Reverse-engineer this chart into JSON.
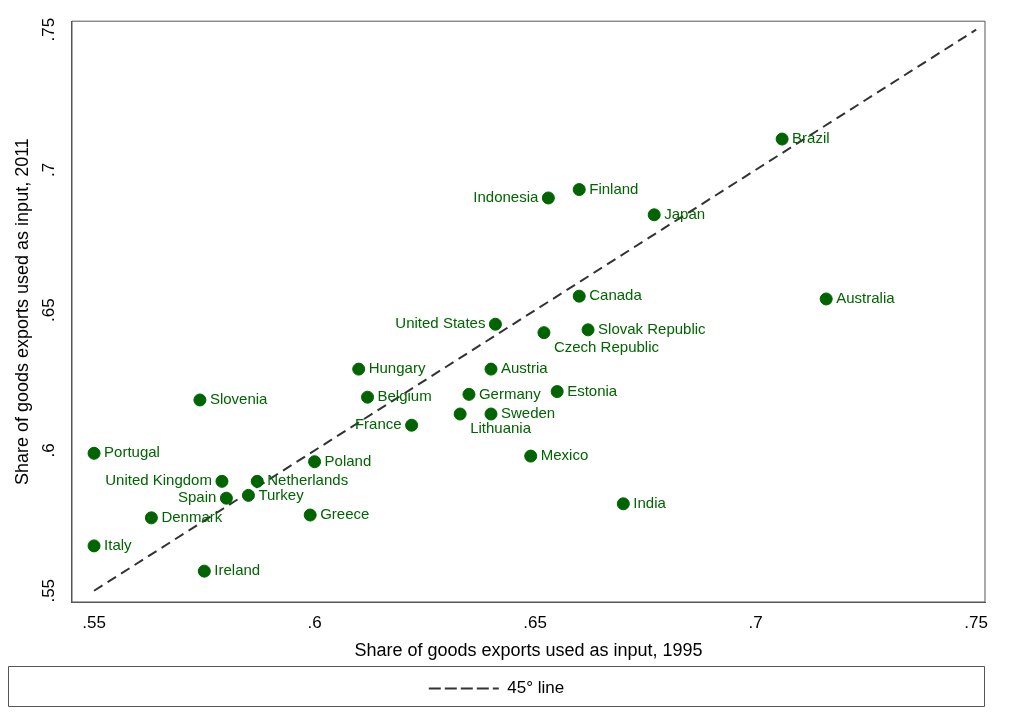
{
  "chart_data": {
    "type": "scatter",
    "xlabel": "Share of goods exports used as input, 1995",
    "ylabel": "Share of goods exports used as input, 2011",
    "xlim": [
      0.545,
      0.752
    ],
    "ylim": [
      0.546,
      0.753
    ],
    "xticks": [
      {
        "value": 0.55,
        "label": ".55"
      },
      {
        "value": 0.6,
        "label": ".6"
      },
      {
        "value": 0.65,
        "label": ".65"
      },
      {
        "value": 0.7,
        "label": ".7"
      },
      {
        "value": 0.75,
        "label": ".75"
      }
    ],
    "yticks": [
      {
        "value": 0.55,
        "label": ".55"
      },
      {
        "value": 0.6,
        "label": ".6"
      },
      {
        "value": 0.65,
        "label": ".65"
      },
      {
        "value": 0.7,
        "label": ".7"
      },
      {
        "value": 0.75,
        "label": ".75"
      }
    ],
    "grid": false,
    "legend": "bottom",
    "series": [
      {
        "color": "#006400",
        "marker": "circle",
        "x": [
          0.706,
          0.66,
          0.653,
          0.677,
          0.66,
          0.716,
          0.641,
          0.652,
          0.662,
          0.61,
          0.64,
          0.574,
          0.612,
          0.635,
          0.655,
          0.633,
          0.64,
          0.622,
          0.55,
          0.649,
          0.6,
          0.579,
          0.587,
          0.585,
          0.58,
          0.67,
          0.599,
          0.563,
          0.55,
          0.575
        ],
        "values": [
          0.711,
          0.693,
          0.69,
          0.684,
          0.655,
          0.654,
          0.645,
          0.642,
          0.643,
          0.629,
          0.629,
          0.618,
          0.619,
          0.62,
          0.621,
          0.613,
          0.613,
          0.609,
          0.599,
          0.598,
          0.596,
          0.589,
          0.589,
          0.584,
          0.583,
          0.581,
          0.577,
          0.576,
          0.566,
          0.557
        ],
        "value_labels": [
          "Brazil",
          "Finland",
          "Indonesia",
          "Japan",
          "Canada",
          "Australia",
          "United States",
          "Czech Republic",
          "Slovak Republic",
          "Hungary",
          "Austria",
          "Slovenia",
          "Belgium",
          "Germany",
          "Estonia",
          "Lithuania",
          "Sweden",
          "France",
          "Portugal",
          "Mexico",
          "Poland",
          "United Kingdom",
          "Netherlands",
          "Turkey",
          "Spain",
          "India",
          "Greece",
          "Denmark",
          "Italy",
          "Ireland"
        ]
      },
      {
        "type": "line",
        "name": "45° line",
        "color": "#333333",
        "line_style": "dashed",
        "marker": "none",
        "x": [
          0.55,
          0.75
        ],
        "values": [
          0.55,
          0.75
        ]
      }
    ]
  }
}
